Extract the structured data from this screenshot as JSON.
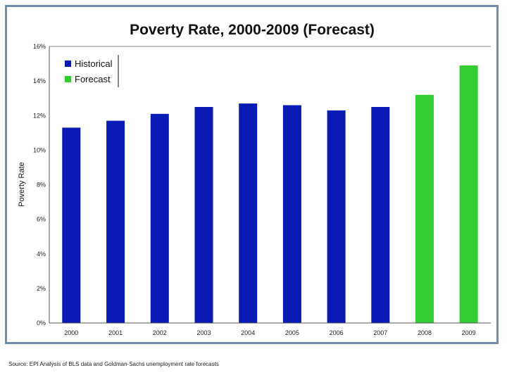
{
  "chart_data": {
    "type": "bar",
    "title": "Poverty Rate, 2000-2009 (Forecast)",
    "xlabel": "",
    "ylabel": "Poverty Rate",
    "ylim": [
      0,
      16
    ],
    "yticks": [
      "0%",
      "2%",
      "4%",
      "6%",
      "8%",
      "10%",
      "12%",
      "14%",
      "16%"
    ],
    "yticks_values": [
      0,
      2,
      4,
      6,
      8,
      10,
      12,
      14,
      16
    ],
    "categories": [
      "2000",
      "2001",
      "2002",
      "2003",
      "2004",
      "2005",
      "2006",
      "2007",
      "2008",
      "2009"
    ],
    "values": [
      11.3,
      11.7,
      12.1,
      12.5,
      12.7,
      12.6,
      12.3,
      12.5,
      13.2,
      14.9
    ],
    "bar_groups": [
      "Historical",
      "Historical",
      "Historical",
      "Historical",
      "Historical",
      "Historical",
      "Historical",
      "Historical",
      "Forecast",
      "Forecast"
    ],
    "legend": [
      {
        "name": "Historical",
        "color": "#0a1ab4"
      },
      {
        "name": "Forecast",
        "color": "#33cc33"
      }
    ],
    "legend_position": "top-left",
    "grid": false
  },
  "source_note": "Source: EPI Analysis of BLS data and Goldman-Sachs unemployment rate forecasts"
}
